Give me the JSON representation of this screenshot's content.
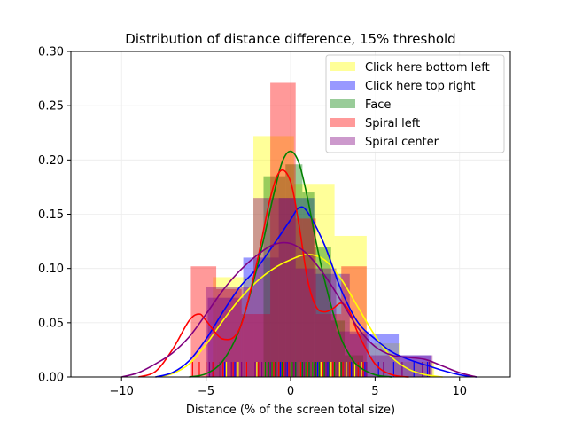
{
  "chart_data": {
    "type": "histogram+kde+rug",
    "title": "Distribution of distance difference, 15% threshold",
    "xlabel": "Distance (% of the screen total size)",
    "ylabel": "",
    "xlim": [
      -13,
      13
    ],
    "ylim": [
      0,
      0.3
    ],
    "xticks": [
      -10,
      -5,
      0,
      5,
      10
    ],
    "xtick_labels": [
      "−10",
      "−5",
      "0",
      "5",
      "10"
    ],
    "yticks": [
      0.0,
      0.05,
      0.1,
      0.15,
      0.2,
      0.25,
      0.3
    ],
    "ytick_labels": [
      "0.00",
      "0.05",
      "0.10",
      "0.15",
      "0.20",
      "0.25",
      "0.30"
    ],
    "grid": true,
    "legend_position": "top-right",
    "series": [
      {
        "name": "Click here bottom left",
        "color": "#ffff00",
        "line_color": "#ffff00",
        "bins": [
          {
            "x0": -4.6,
            "x1": -2.2,
            "density": 0.092
          },
          {
            "x0": -2.2,
            "x1": 0.2,
            "density": 0.222
          },
          {
            "x0": 0.2,
            "x1": 2.6,
            "density": 0.178
          },
          {
            "x0": 2.6,
            "x1": 4.5,
            "density": 0.13
          },
          {
            "x0": 4.5,
            "x1": 6.5,
            "density": 0.031
          },
          {
            "x0": 6.5,
            "x1": 8.5,
            "density": 0.014
          }
        ],
        "kde": [
          [
            -8,
            0.0
          ],
          [
            -7,
            0.003
          ],
          [
            -6,
            0.012
          ],
          [
            -5,
            0.03
          ],
          [
            -4,
            0.052
          ],
          [
            -3,
            0.072
          ],
          [
            -2,
            0.088
          ],
          [
            -1,
            0.1
          ],
          [
            0,
            0.108
          ],
          [
            1,
            0.113
          ],
          [
            2,
            0.108
          ],
          [
            3,
            0.09
          ],
          [
            4,
            0.064
          ],
          [
            5,
            0.038
          ],
          [
            6,
            0.018
          ],
          [
            7,
            0.007
          ],
          [
            8,
            0.002
          ],
          [
            9,
            0.0
          ]
        ],
        "rug": [
          -4.2,
          -3.8,
          -3.1,
          -2.6,
          -2.0,
          -1.5,
          -1.1,
          -0.8,
          -0.4,
          0.1,
          0.5,
          0.9,
          1.3,
          1.8,
          2.4,
          2.9,
          3.3,
          3.8,
          4.2
        ]
      },
      {
        "name": "Click here top right",
        "color": "#0000ff",
        "line_color": "#0000ff",
        "bins": [
          {
            "x0": -4.9,
            "x1": -2.8,
            "density": 0.073
          },
          {
            "x0": -2.8,
            "x1": -0.7,
            "density": 0.11
          },
          {
            "x0": -0.7,
            "x1": 1.4,
            "density": 0.165
          },
          {
            "x0": 1.4,
            "x1": 3.5,
            "density": 0.095
          },
          {
            "x0": 3.5,
            "x1": 6.4,
            "density": 0.04
          },
          {
            "x0": 6.4,
            "x1": 8.3,
            "density": 0.02
          }
        ],
        "kde": [
          [
            -8,
            0.0
          ],
          [
            -7,
            0.004
          ],
          [
            -6,
            0.015
          ],
          [
            -5,
            0.035
          ],
          [
            -4,
            0.06
          ],
          [
            -3,
            0.083
          ],
          [
            -2,
            0.1
          ],
          [
            -1,
            0.122
          ],
          [
            0,
            0.145
          ],
          [
            0.5,
            0.156
          ],
          [
            1,
            0.152
          ],
          [
            2,
            0.122
          ],
          [
            3,
            0.08
          ],
          [
            4,
            0.05
          ],
          [
            5,
            0.035
          ],
          [
            6,
            0.023
          ],
          [
            7,
            0.016
          ],
          [
            8,
            0.011
          ],
          [
            9,
            0.006
          ],
          [
            10,
            0.002
          ],
          [
            11,
            0.0
          ]
        ],
        "rug": [
          -4.6,
          -3.9,
          -3.3,
          -2.7,
          -1.9,
          -1.2,
          -0.6,
          -0.2,
          0.3,
          0.7,
          1.1,
          1.6,
          2.2,
          2.8,
          3.6,
          4.4,
          5.2,
          6.1,
          7.3,
          8.1
        ]
      },
      {
        "name": "Face",
        "color": "#008000",
        "line_color": "#008000",
        "bins": [
          {
            "x0": -1.6,
            "x1": -0.3,
            "density": 0.185
          },
          {
            "x0": -0.3,
            "x1": 0.7,
            "density": 0.196
          },
          {
            "x0": 0.7,
            "x1": 1.4,
            "density": 0.17
          },
          {
            "x0": 1.4,
            "x1": 2.4,
            "density": 0.12
          },
          {
            "x0": 2.4,
            "x1": 3.2,
            "density": 0.052
          },
          {
            "x0": 3.2,
            "x1": 4.3,
            "density": 0.02
          }
        ],
        "kde": [
          [
            -6,
            0.0
          ],
          [
            -5,
            0.003
          ],
          [
            -4,
            0.015
          ],
          [
            -3,
            0.045
          ],
          [
            -2,
            0.1
          ],
          [
            -1,
            0.168
          ],
          [
            -0.5,
            0.198
          ],
          [
            0,
            0.208
          ],
          [
            0.5,
            0.197
          ],
          [
            1,
            0.165
          ],
          [
            1.5,
            0.125
          ],
          [
            2,
            0.09
          ],
          [
            2.5,
            0.06
          ],
          [
            3,
            0.035
          ],
          [
            3.5,
            0.02
          ],
          [
            4,
            0.01
          ],
          [
            5,
            0.002
          ],
          [
            6,
            0.0
          ]
        ],
        "rug": [
          -1.5,
          -1.3,
          -1.1,
          -0.9,
          -0.7,
          -0.5,
          -0.3,
          -0.1,
          0.1,
          0.3,
          0.5,
          0.7,
          0.9,
          1.1,
          1.3,
          1.5,
          1.7,
          2.0,
          2.3,
          2.6,
          3.0,
          3.5
        ]
      },
      {
        "name": "Spiral left",
        "color": "#ff0000",
        "line_color": "#ff0000",
        "bins": [
          {
            "x0": -5.9,
            "x1": -4.4,
            "density": 0.102
          },
          {
            "x0": -4.4,
            "x1": -2.9,
            "density": 0.081
          },
          {
            "x0": -2.9,
            "x1": -1.2,
            "density": 0.058
          },
          {
            "x0": -1.2,
            "x1": 0.3,
            "density": 0.271
          },
          {
            "x0": 0.3,
            "x1": 1.5,
            "density": 0.146
          },
          {
            "x0": 1.5,
            "x1": 3.0,
            "density": 0.058
          },
          {
            "x0": 3.0,
            "x1": 4.5,
            "density": 0.102
          }
        ],
        "kde": [
          [
            -9,
            0.0
          ],
          [
            -8,
            0.005
          ],
          [
            -7,
            0.025
          ],
          [
            -6,
            0.052
          ],
          [
            -5.4,
            0.058
          ],
          [
            -5,
            0.052
          ],
          [
            -4,
            0.035
          ],
          [
            -3,
            0.045
          ],
          [
            -2,
            0.105
          ],
          [
            -1.2,
            0.165
          ],
          [
            -0.6,
            0.19
          ],
          [
            0,
            0.18
          ],
          [
            0.5,
            0.14
          ],
          [
            1,
            0.09
          ],
          [
            1.5,
            0.065
          ],
          [
            2,
            0.06
          ],
          [
            2.5,
            0.063
          ],
          [
            3,
            0.068
          ],
          [
            3.5,
            0.06
          ],
          [
            4,
            0.04
          ],
          [
            5,
            0.012
          ],
          [
            6,
            0.002
          ],
          [
            7,
            0.0
          ]
        ],
        "rug": [
          -5.8,
          -5.4,
          -5.0,
          -4.6,
          -4.0,
          -3.4,
          -2.6,
          -1.9,
          -1.0,
          -0.7,
          -0.4,
          -0.1,
          0.2,
          0.6,
          1.0,
          1.4,
          1.9,
          2.5,
          3.1,
          3.5,
          4.0,
          4.3
        ]
      },
      {
        "name": "Spiral center",
        "color": "#800080",
        "line_color": "#800080",
        "bins": [
          {
            "x0": -5.0,
            "x1": -2.2,
            "density": 0.083
          },
          {
            "x0": -2.2,
            "x1": -1.3,
            "density": 0.165
          },
          {
            "x0": -1.3,
            "x1": 0.3,
            "density": 0.165
          },
          {
            "x0": 0.3,
            "x1": 2.7,
            "density": 0.1
          },
          {
            "x0": 2.7,
            "x1": 4.6,
            "density": 0.042
          },
          {
            "x0": 4.6,
            "x1": 8.4,
            "density": 0.02
          }
        ],
        "kde": [
          [
            -10,
            0.0
          ],
          [
            -9,
            0.004
          ],
          [
            -8,
            0.012
          ],
          [
            -7,
            0.022
          ],
          [
            -6,
            0.037
          ],
          [
            -5,
            0.058
          ],
          [
            -4,
            0.08
          ],
          [
            -3,
            0.098
          ],
          [
            -2,
            0.112
          ],
          [
            -1,
            0.122
          ],
          [
            0,
            0.123
          ],
          [
            1,
            0.113
          ],
          [
            2,
            0.094
          ],
          [
            3,
            0.07
          ],
          [
            4,
            0.045
          ],
          [
            5,
            0.028
          ],
          [
            6,
            0.02
          ],
          [
            7,
            0.018
          ],
          [
            8,
            0.016
          ],
          [
            9,
            0.01
          ],
          [
            10,
            0.004
          ],
          [
            11,
            0.0
          ]
        ],
        "rug": [
          -4.8,
          -4.2,
          -3.5,
          -2.9,
          -2.1,
          -1.7,
          -1.2,
          -0.8,
          -0.3,
          0.2,
          0.8,
          1.4,
          2.1,
          2.8,
          3.7,
          4.5,
          5.5,
          6.6,
          7.8,
          8.2
        ]
      }
    ]
  }
}
